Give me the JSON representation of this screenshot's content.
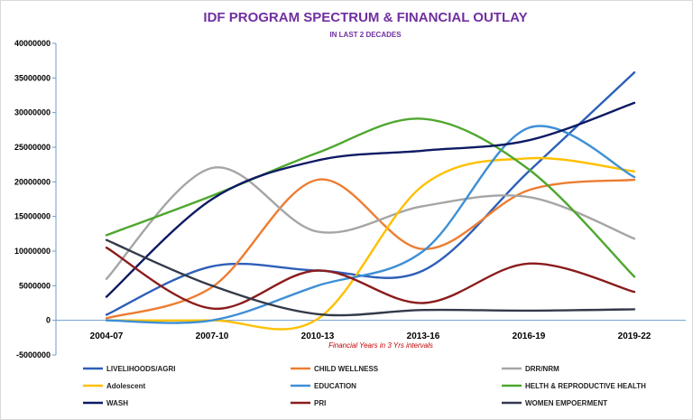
{
  "chart_data": {
    "type": "line",
    "title": "IDF PROGRAM SPECTRUM & FINANCIAL OUTLAY",
    "subtitle": "IN  LAST  2 DECADES",
    "xlabel": "Financial Years in 3 Yrs intervals",
    "ylabel": "",
    "ylim": [
      -5000000,
      40000000
    ],
    "yticks": [
      -5000000,
      0,
      5000000,
      10000000,
      15000000,
      20000000,
      25000000,
      30000000,
      35000000,
      40000000
    ],
    "ytick_labels": [
      "-5000000",
      "0",
      "5000000",
      "10000000",
      "15000000",
      "20000000",
      "25000000",
      "30000000",
      "35000000",
      "40000000"
    ],
    "categories": [
      "2004-07",
      "2007-10",
      "2010-13",
      "2013-16",
      "2016-19",
      "2019-22"
    ],
    "legend_position": "bottom",
    "series": [
      {
        "name": "LIVELIHOODS/AGRI",
        "color": "#2e5fb8",
        "values": [
          800000,
          7800000,
          7200000,
          7200000,
          21500000,
          35800000
        ]
      },
      {
        "name": "CHILD WELLNESS",
        "color": "#ed7d31",
        "values": [
          300000,
          4800000,
          20300000,
          10300000,
          18800000,
          20300000
        ]
      },
      {
        "name": "DRR/NRM",
        "color": "#a5a5a5",
        "values": [
          6000000,
          22000000,
          12800000,
          16500000,
          17800000,
          11800000
        ]
      },
      {
        "name": "Adolescent",
        "color": "#ffc000",
        "values": [
          0,
          0,
          200000,
          19500000,
          23400000,
          21500000
        ]
      },
      {
        "name": "EDUCATION",
        "color": "#3e8fd6",
        "values": [
          0,
          0,
          5000000,
          10000000,
          27800000,
          20700000
        ]
      },
      {
        "name": "HELTH & REPRODUCTIVE HEALTH",
        "color": "#4ea72e",
        "values": [
          12300000,
          18000000,
          24200000,
          29100000,
          21800000,
          6300000
        ]
      },
      {
        "name": "WASH",
        "color": "#0d1a63",
        "values": [
          3400000,
          17500000,
          23100000,
          24500000,
          26000000,
          31400000
        ]
      },
      {
        "name": "PRI",
        "color": "#8b1c1c",
        "values": [
          10500000,
          1700000,
          7200000,
          2500000,
          8200000,
          4100000
        ]
      },
      {
        "name": "WOMEN EMPOERMENT",
        "color": "#333a4a",
        "values": [
          11600000,
          5000000,
          900000,
          1500000,
          1400000,
          1600000
        ]
      }
    ]
  }
}
